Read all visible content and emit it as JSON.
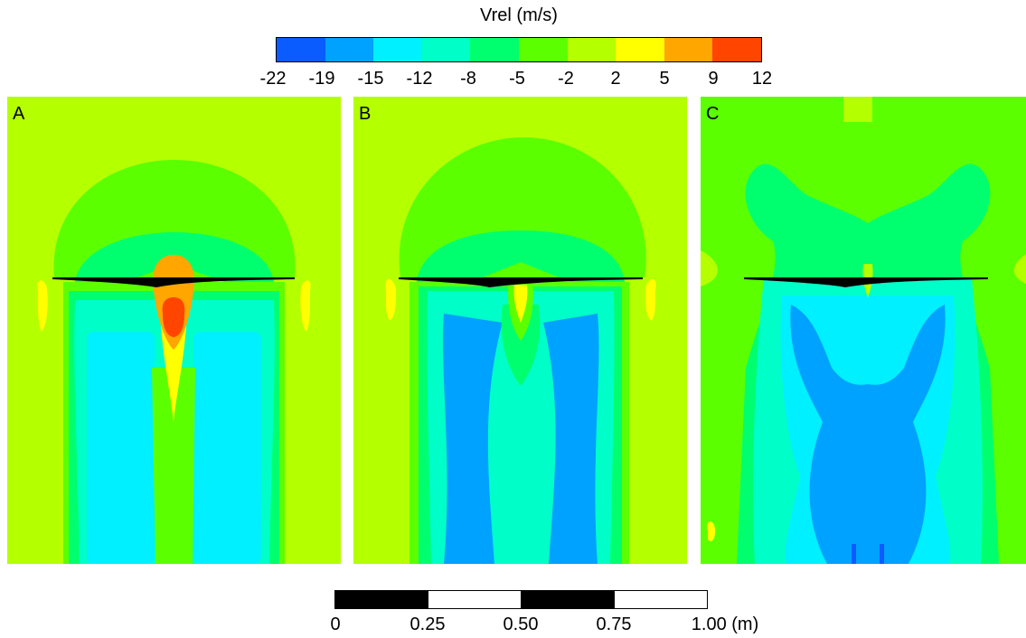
{
  "colorbar": {
    "title": "Vrel (m/s)",
    "levels": [
      "-22",
      "-19",
      "-15",
      "-12",
      "-8",
      "-5",
      "-2",
      "2",
      "5",
      "9",
      "12"
    ],
    "colors": [
      "#0a5cff",
      "#00a2ff",
      "#00f0ff",
      "#00ffc8",
      "#00ff6e",
      "#5bff00",
      "#b4ff00",
      "#ffff00",
      "#ffa600",
      "#ff4500"
    ]
  },
  "panels": [
    {
      "label": "A"
    },
    {
      "label": "B"
    },
    {
      "label": "C"
    }
  ],
  "scale_bar": {
    "ticks": [
      "0",
      "0.25",
      "0.50",
      "0.75",
      "1.00 (m)"
    ],
    "segment_colors": [
      "#000000",
      "#ffffff",
      "#000000",
      "#ffffff"
    ]
  }
}
